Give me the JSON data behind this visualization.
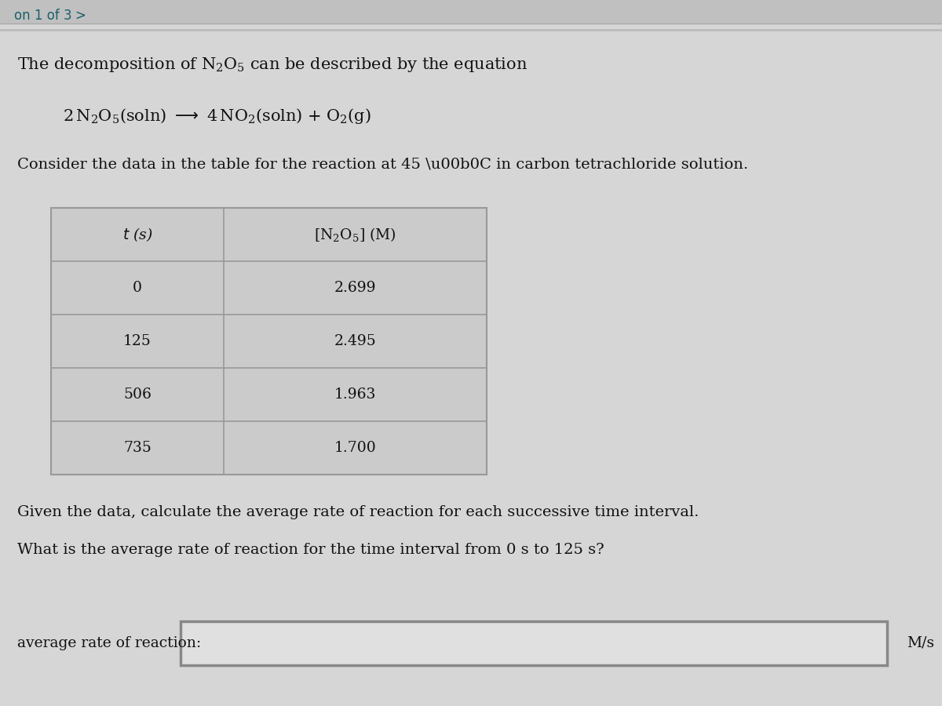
{
  "page_label": "on 1 of 3",
  "chevron": ">",
  "title_str": "The decomposition of $\\mathregular{N_2O_5}$ can be described by the equation",
  "eq_str": "$\\mathregular{2\\,N_2O_5}$(soln) $\\longrightarrow$ $\\mathregular{4\\,NO_2}$(soln) + $\\mathregular{O_2}$(g)",
  "consider_str": "Consider the data in the table for the reaction at 45 \\u00b0C in carbon tetrachloride solution.",
  "col1_header": "$t$ (s)",
  "col2_header": "[$\\mathregular{N_2O_5}$] (M)",
  "time_values": [
    "0",
    "125",
    "506",
    "735"
  ],
  "conc_values": [
    "2.699",
    "2.495",
    "1.963",
    "1.700"
  ],
  "question1": "Given the data, calculate the average rate of reaction for each successive time interval.",
  "question2": "What is the average rate of reaction for the time interval from 0 s to 125 s?",
  "answer_label": "average rate of reaction:",
  "answer_unit": "M/s",
  "bg_top": "#d4d4d4",
  "bg_bottom": "#c8c8c8",
  "table_bg": "#d0d0d0",
  "table_line_color": "#aaaaaa",
  "text_color": "#111111",
  "teal_color": "#1a5f6a",
  "input_box_bg": "#e8e8e8",
  "input_box_border": "#888888",
  "top_bar_color": "#bbbbbb",
  "separator_color": "#999999"
}
